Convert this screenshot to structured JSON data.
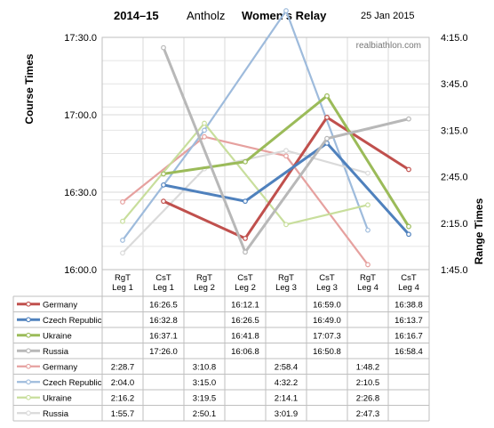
{
  "header": {
    "season": "2014–15",
    "venue": "Antholz",
    "event": "Women's Relay",
    "date": "25 Jan 2015"
  },
  "watermark": "realbiathlon.com",
  "chart_data": {
    "type": "line",
    "categories": [
      "RgT\nLeg  1",
      "CsT\nLeg 1",
      "RgT\nLeg 2",
      "CsT\nLeg 2",
      "RgT\nLeg 3",
      "CsT\nLeg 3",
      "RgT\nLeg 4",
      "CsT\nLeg 4"
    ],
    "left_axis": {
      "label": "Course Times",
      "ticks": [
        "16:00.0",
        "16:30.0",
        "17:00.0",
        "17:30.0"
      ],
      "range_seconds": [
        960,
        1050
      ]
    },
    "right_axis": {
      "label": "Range Times",
      "ticks": [
        "1:45.0",
        "2:15.0",
        "2:45.0",
        "3:15.0",
        "3:45.0",
        "4:15.0"
      ],
      "range_seconds": [
        105,
        255
      ]
    },
    "grid": true,
    "course_series": [
      {
        "name": "Germany",
        "color": "#c0504d",
        "values": [
          "",
          "16:26.5",
          "",
          "16:12.1",
          "",
          "16:59.0",
          "",
          "16:38.8"
        ]
      },
      {
        "name": "Czech Republic",
        "color": "#4f81bd",
        "values": [
          "",
          "16:32.8",
          "",
          "16:26.5",
          "",
          "16:49.0",
          "",
          "16:13.7"
        ]
      },
      {
        "name": "Ukraine",
        "color": "#9bbb59",
        "values": [
          "",
          "16:37.1",
          "",
          "16:41.8",
          "",
          "17:07.3",
          "",
          "16:16.7"
        ]
      },
      {
        "name": "Russia",
        "color": "#b8b8b8",
        "values": [
          "",
          "17:26.0",
          "",
          "16:06.8",
          "",
          "16:50.8",
          "",
          "16:58.4"
        ]
      }
    ],
    "range_series": [
      {
        "name": "Germany",
        "color": "#e6a19f",
        "values": [
          "2:28.7",
          "",
          "3:10.8",
          "",
          "2:58.4",
          "",
          "1:48.2",
          ""
        ]
      },
      {
        "name": "Czech Republic",
        "color": "#9ebbdc",
        "values": [
          "2:04.0",
          "",
          "3:15.0",
          "",
          "4:32.2",
          "",
          "2:10.5",
          ""
        ]
      },
      {
        "name": "Ukraine",
        "color": "#c8de9c",
        "values": [
          "2:16.2",
          "",
          "3:19.5",
          "",
          "2:14.1",
          "",
          "2:26.8",
          ""
        ]
      },
      {
        "name": "Russia",
        "color": "#dadada",
        "values": [
          "1:55.7",
          "",
          "2:50.1",
          "",
          "3:01.9",
          "",
          "2:47.3",
          ""
        ]
      }
    ]
  }
}
